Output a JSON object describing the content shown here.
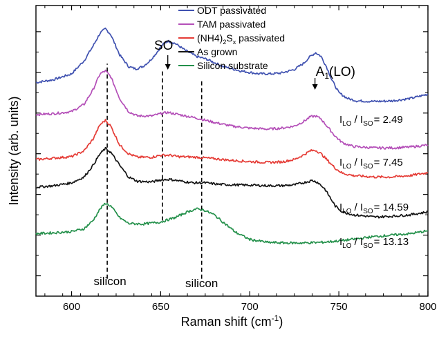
{
  "chart_data": {
    "type": "line",
    "xlabel": "Raman shift (cm",
    "xlabel_sup": "-1",
    "xlabel_end": ")",
    "ylabel": "Intensity (arb. units)",
    "xlim": [
      580,
      800
    ],
    "ylim": [
      0,
      1
    ],
    "x_ticks": [
      600,
      650,
      700,
      750,
      800
    ],
    "y_ticks_labeled": false,
    "grid": false,
    "legend_position": "top-center",
    "series": [
      {
        "name": "ODT passivated",
        "color": "#3f51b0",
        "points": [
          [
            580,
            0.735
          ],
          [
            590,
            0.745
          ],
          [
            600,
            0.765
          ],
          [
            607,
            0.81
          ],
          [
            612,
            0.86
          ],
          [
            616,
            0.905
          ],
          [
            619,
            0.92
          ],
          [
            622,
            0.9
          ],
          [
            627,
            0.83
          ],
          [
            632,
            0.79
          ],
          [
            636,
            0.782
          ],
          [
            640,
            0.79
          ],
          [
            644,
            0.81
          ],
          [
            648,
            0.84
          ],
          [
            651,
            0.865
          ],
          [
            654,
            0.878
          ],
          [
            658,
            0.87
          ],
          [
            664,
            0.845
          ],
          [
            670,
            0.825
          ],
          [
            676,
            0.815
          ],
          [
            685,
            0.79
          ],
          [
            695,
            0.775
          ],
          [
            705,
            0.765
          ],
          [
            712,
            0.765
          ],
          [
            718,
            0.768
          ],
          [
            725,
            0.78
          ],
          [
            730,
            0.8
          ],
          [
            734,
            0.825
          ],
          [
            737,
            0.838
          ],
          [
            740,
            0.825
          ],
          [
            743,
            0.79
          ],
          [
            746,
            0.745
          ],
          [
            750,
            0.7
          ],
          [
            755,
            0.68
          ],
          [
            760,
            0.672
          ],
          [
            770,
            0.67
          ],
          [
            780,
            0.672
          ],
          [
            790,
            0.68
          ],
          [
            800,
            0.695
          ]
        ]
      },
      {
        "name": "TAM passivated",
        "color": "#b44fb8",
        "points": [
          [
            580,
            0.625
          ],
          [
            590,
            0.628
          ],
          [
            600,
            0.635
          ],
          [
            607,
            0.66
          ],
          [
            612,
            0.71
          ],
          [
            616,
            0.765
          ],
          [
            619,
            0.775
          ],
          [
            622,
            0.755
          ],
          [
            627,
            0.68
          ],
          [
            632,
            0.635
          ],
          [
            637,
            0.62
          ],
          [
            645,
            0.62
          ],
          [
            650,
            0.628
          ],
          [
            654,
            0.632
          ],
          [
            660,
            0.625
          ],
          [
            670,
            0.613
          ],
          [
            680,
            0.598
          ],
          [
            690,
            0.585
          ],
          [
            700,
            0.578
          ],
          [
            710,
            0.575
          ],
          [
            718,
            0.578
          ],
          [
            725,
            0.585
          ],
          [
            730,
            0.6
          ],
          [
            734,
            0.617
          ],
          [
            737,
            0.62
          ],
          [
            740,
            0.61
          ],
          [
            744,
            0.58
          ],
          [
            748,
            0.55
          ],
          [
            752,
            0.528
          ],
          [
            758,
            0.515
          ],
          [
            770,
            0.51
          ],
          [
            780,
            0.51
          ],
          [
            790,
            0.513
          ],
          [
            800,
            0.52
          ]
        ]
      },
      {
        "name": "(NH4)2Sx passivated",
        "color": "#e53b35",
        "points": [
          [
            580,
            0.47
          ],
          [
            590,
            0.475
          ],
          [
            600,
            0.48
          ],
          [
            607,
            0.5
          ],
          [
            612,
            0.54
          ],
          [
            616,
            0.59
          ],
          [
            619,
            0.605
          ],
          [
            622,
            0.585
          ],
          [
            627,
            0.52
          ],
          [
            632,
            0.49
          ],
          [
            637,
            0.478
          ],
          [
            645,
            0.478
          ],
          [
            650,
            0.485
          ],
          [
            655,
            0.485
          ],
          [
            660,
            0.48
          ],
          [
            670,
            0.478
          ],
          [
            680,
            0.473
          ],
          [
            690,
            0.467
          ],
          [
            700,
            0.463
          ],
          [
            710,
            0.46
          ],
          [
            718,
            0.462
          ],
          [
            725,
            0.47
          ],
          [
            730,
            0.485
          ],
          [
            734,
            0.5
          ],
          [
            737,
            0.502
          ],
          [
            740,
            0.49
          ],
          [
            744,
            0.465
          ],
          [
            748,
            0.44
          ],
          [
            752,
            0.423
          ],
          [
            758,
            0.415
          ],
          [
            770,
            0.41
          ],
          [
            780,
            0.41
          ],
          [
            790,
            0.415
          ],
          [
            800,
            0.425
          ]
        ]
      },
      {
        "name": "As grown",
        "color": "#141414",
        "points": [
          [
            580,
            0.375
          ],
          [
            590,
            0.38
          ],
          [
            600,
            0.39
          ],
          [
            607,
            0.41
          ],
          [
            612,
            0.45
          ],
          [
            616,
            0.49
          ],
          [
            619,
            0.508
          ],
          [
            622,
            0.495
          ],
          [
            627,
            0.45
          ],
          [
            632,
            0.41
          ],
          [
            637,
            0.395
          ],
          [
            645,
            0.393
          ],
          [
            650,
            0.4
          ],
          [
            655,
            0.402
          ],
          [
            660,
            0.397
          ],
          [
            668,
            0.39
          ],
          [
            675,
            0.39
          ],
          [
            682,
            0.385
          ],
          [
            690,
            0.383
          ],
          [
            700,
            0.382
          ],
          [
            710,
            0.38
          ],
          [
            718,
            0.38
          ],
          [
            725,
            0.383
          ],
          [
            730,
            0.39
          ],
          [
            735,
            0.398
          ],
          [
            738,
            0.392
          ],
          [
            742,
            0.37
          ],
          [
            745,
            0.34
          ],
          [
            748,
            0.31
          ],
          [
            752,
            0.29
          ],
          [
            758,
            0.28
          ],
          [
            770,
            0.272
          ],
          [
            780,
            0.275
          ],
          [
            790,
            0.28
          ],
          [
            800,
            0.29
          ]
        ]
      },
      {
        "name": "Silicon substrate",
        "color": "#23904a",
        "points": [
          [
            580,
            0.215
          ],
          [
            590,
            0.218
          ],
          [
            600,
            0.222
          ],
          [
            607,
            0.232
          ],
          [
            612,
            0.26
          ],
          [
            616,
            0.3
          ],
          [
            619,
            0.32
          ],
          [
            622,
            0.31
          ],
          [
            627,
            0.27
          ],
          [
            632,
            0.25
          ],
          [
            640,
            0.248
          ],
          [
            650,
            0.255
          ],
          [
            658,
            0.27
          ],
          [
            665,
            0.29
          ],
          [
            670,
            0.3
          ],
          [
            674,
            0.297
          ],
          [
            680,
            0.28
          ],
          [
            686,
            0.25
          ],
          [
            692,
            0.22
          ],
          [
            700,
            0.195
          ],
          [
            710,
            0.185
          ],
          [
            720,
            0.183
          ],
          [
            730,
            0.183
          ],
          [
            740,
            0.185
          ],
          [
            750,
            0.19
          ],
          [
            760,
            0.197
          ],
          [
            770,
            0.205
          ],
          [
            780,
            0.21
          ],
          [
            790,
            0.215
          ],
          [
            800,
            0.225
          ]
        ]
      }
    ],
    "legend_label_parts": [
      [
        "ODT passivated"
      ],
      [
        "TAM passivated"
      ],
      [
        "(NH4)",
        "2",
        "S",
        "x",
        " passivated"
      ],
      [
        "As grown"
      ],
      [
        "Silicon substrate"
      ]
    ],
    "reference_lines_x": [
      620,
      651,
      673
    ],
    "annotations": {
      "so_label": "SO",
      "so_arrow_x": 654,
      "a1lo_label": "A",
      "a1lo_sub": "1",
      "a1lo_end": "(LO)",
      "a1lo_arrow_x": 737,
      "silicon_labels": [
        "silicon",
        "silicon"
      ],
      "ratio_labels": [
        {
          "I1": "I",
          "sub1": "LO",
          "sep": " / ",
          "I2": "I",
          "sub2": "SO",
          "value": "= 2.49"
        },
        {
          "I1": "I",
          "sub1": "LO",
          "sep": " / ",
          "I2": "I",
          "sub2": "SO",
          "value": "= 7.45"
        },
        {
          "I1": "I",
          "sub1": "LO",
          "sep": " / ",
          "I2": "I",
          "sub2": "SO",
          "value": "= 14.59"
        },
        {
          "I1": "I",
          "sub1": "LO",
          "sep": " / ",
          "I2": "I",
          "sub2": "SO",
          "value": "= 13.13"
        }
      ]
    }
  }
}
